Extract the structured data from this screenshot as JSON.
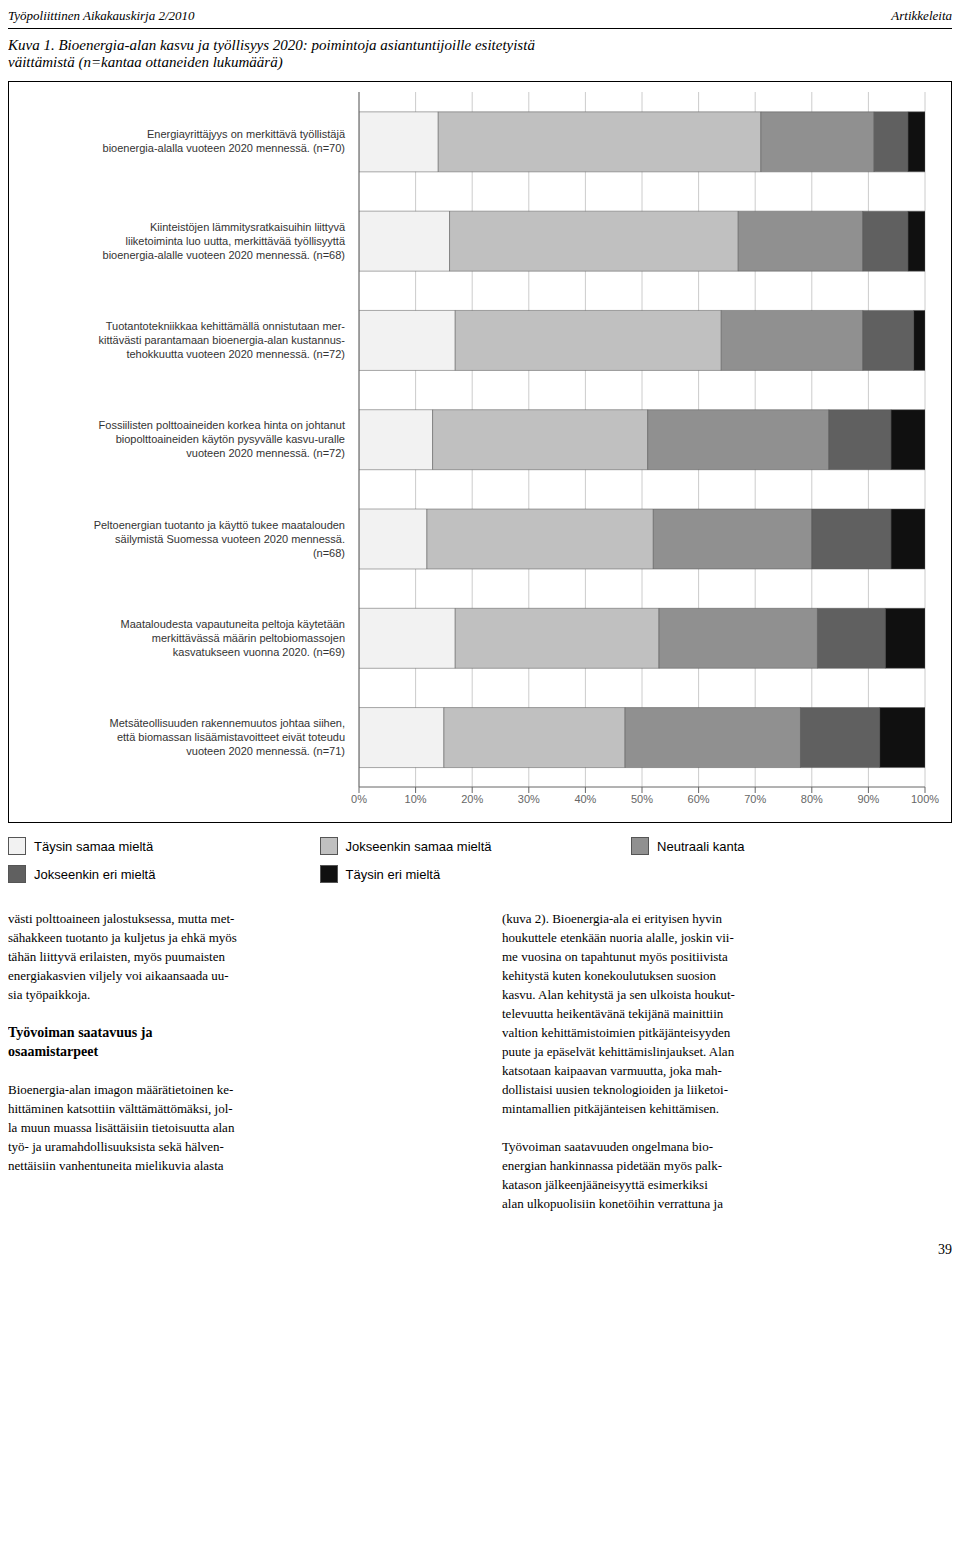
{
  "chart_data": {
    "type": "bar",
    "orientation": "horizontal",
    "stacked": true,
    "grid": true,
    "legend": "bottom",
    "header_left": "Työpoliittinen Aikakauskirja 2/2010",
    "header_right": "Artikkeleita",
    "title": "Kuva 1. Bioenergia-alan kasvu ja työllisyys 2020: poimintoja asiantuntijoille esitetyistä\nväittämistä (n=kantaa ottaneiden lukumäärä)",
    "categories": [
      "Energiayrittäjyys on merkittävä työllistäjä\nbioenergia-alalla vuoteen 2020 mennessä. (n=70)",
      "Kiinteistöjen lämmitysratkaisuihin liittyvä\nliiketoiminta luo uutta, merkittävää työllisyyttä\nbioenergia-alalle vuoteen 2020 mennessä. (n=68)",
      "Tuotantotekniikkaa kehittämällä onnistutaan mer-\nkittävästi parantamaan bioenergia-alan kustannus-\ntehokkuutta vuoteen 2020 mennessä. (n=72)",
      "Fossiilisten polttoaineiden korkea hinta on johtanut\nbiopolttoaineiden käytön pysyvälle kasvu-uralle\nvuoteen 2020 mennessä. (n=72)",
      "Peltoenergian tuotanto ja käyttö tukee maatalouden\nsäilymistä Suomessa vuoteen 2020 mennessä.\n(n=68)",
      "Maataloudesta vapautuneita peltoja käytetään\nmerkittävässä määrin peltobiomassojen\nkasvatukseen vuonna 2020. (n=69)",
      "Metsäteollisuuden rakennemuutos johtaa siihen,\nettä biomassan lisäämistavoitteet eivät toteudu\nvuoteen 2020 mennessä. (n=71)"
    ],
    "series": [
      {
        "name": "Täysin samaa mieltä",
        "color": "#f2f2f2",
        "values": [
          14,
          16,
          17,
          13,
          12,
          17,
          15
        ]
      },
      {
        "name": "Jokseenkin samaa mieltä",
        "color": "#c0c0c0",
        "values": [
          57,
          51,
          47,
          38,
          40,
          36,
          32
        ]
      },
      {
        "name": "Neutraali kanta",
        "color": "#909090",
        "values": [
          20,
          22,
          25,
          32,
          28,
          28,
          31
        ]
      },
      {
        "name": "Jokseenkin eri mieltä",
        "color": "#606060",
        "values": [
          6,
          8,
          9,
          11,
          14,
          12,
          14
        ]
      },
      {
        "name": "Täysin eri mieltä",
        "color": "#101010",
        "values": [
          3,
          3,
          2,
          6,
          6,
          7,
          8
        ]
      }
    ],
    "xlim": [
      0,
      100
    ],
    "xticks": [
      {
        "value": 0,
        "label": "0%"
      },
      {
        "value": 10,
        "label": "10%"
      },
      {
        "value": 20,
        "label": "20%"
      },
      {
        "value": 30,
        "label": "30%"
      },
      {
        "value": 40,
        "label": "40%"
      },
      {
        "value": 50,
        "label": "50%"
      },
      {
        "value": 60,
        "label": "60%"
      },
      {
        "value": 70,
        "label": "70%"
      },
      {
        "value": 80,
        "label": "80%"
      },
      {
        "value": 90,
        "label": "90%"
      },
      {
        "value": 100,
        "label": "100%"
      }
    ],
    "text_columns": [
      [
        {
          "lines": [
            "västi polttoaineen jalostuksessa, mutta met-",
            "sähakkeen tuotanto ja kuljetus ja ehkä myös",
            "tähän liittyvä erilaisten, myös puumaisten",
            "energiakasvien viljely voi aikaansaada uu-",
            "sia työpaikkoja."
          ]
        },
        {
          "heading": [
            "Työvoiman saatavuus ja",
            "osaamistarpeet"
          ]
        },
        {
          "lines": [
            "Bioenergia-alan imagon määrätietoinen ke-",
            "hittäminen katsottiin välttämättömäksi, jol-",
            "la muun muassa lisättäisiin tietoisuutta alan",
            "työ- ja uramahdollisuuksista sekä hälven-",
            "nettäisiin vanhentuneita mielikuvia alasta"
          ]
        }
      ],
      [
        {
          "lines": [
            "(kuva 2). Bioenergia-ala ei erityisen hyvin",
            "houkuttele etenkään nuoria alalle, joskin vii-",
            "me vuosina on tapahtunut myös positiivista",
            "kehitystä kuten konekoulutuksen suosion",
            "kasvu. Alan kehitystä ja sen ulkoista houkut-",
            "televuutta heikentävänä tekijänä mainittiin",
            "valtion kehittämistoimien pitkäjänteisyyden",
            "puute ja epäselvät kehittämislinjaukset. Alan",
            "katsotaan kaipaavan varmuutta, joka mah-",
            "dollistaisi uusien teknologioiden ja liiketoi-",
            "mintamallien pitkäjänteisen kehittämisen."
          ]
        },
        {
          "lines": [
            "Työvoiman saatavuuden ongelmana bio-",
            "energian hankinnassa pidetään myös palk-",
            "katason jälkeenjääneisyyttä esimerkiksi",
            "alan ulkopuolisiin konetöihin verrattuna ja"
          ]
        }
      ]
    ],
    "page_number": "39"
  }
}
